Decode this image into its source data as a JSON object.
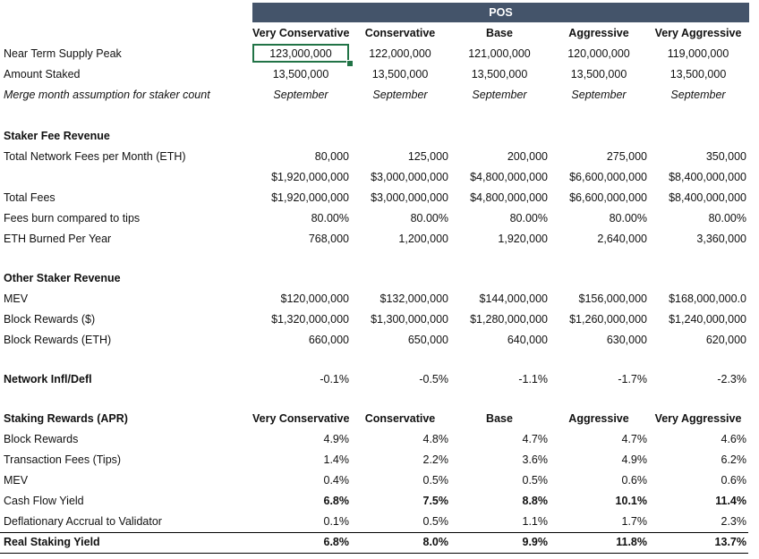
{
  "banner": "POS",
  "scenarios": [
    "Very Conservative",
    "Conservative",
    "Base",
    "Aggressive",
    "Very Aggressive"
  ],
  "inputs": {
    "supply_peak": {
      "label": "Near Term Supply Peak",
      "values": [
        "123,000,000",
        "122,000,000",
        "121,000,000",
        "120,000,000",
        "119,000,000"
      ]
    },
    "amount_staked": {
      "label": "Amount Staked",
      "values": [
        "13,500,000",
        "13,500,000",
        "13,500,000",
        "13,500,000",
        "13,500,000"
      ]
    },
    "merge_month": {
      "label": "Merge month assumption for staker count",
      "values": [
        "September",
        "September",
        "September",
        "September",
        "September"
      ]
    }
  },
  "staker_fee": {
    "title": "Staker Fee Revenue",
    "total_network_fees": {
      "label": "Total Network Fees per Month (ETH)",
      "values": [
        "80,000",
        "125,000",
        "200,000",
        "275,000",
        "350,000"
      ]
    },
    "fees_usd": {
      "label": "",
      "values": [
        "$1,920,000,000",
        "$3,000,000,000",
        "$4,800,000,000",
        "$6,600,000,000",
        "$8,400,000,000"
      ]
    },
    "total_fees": {
      "label": "Total Fees",
      "values": [
        "$1,920,000,000",
        "$3,000,000,000",
        "$4,800,000,000",
        "$6,600,000,000",
        "$8,400,000,000"
      ]
    },
    "burn_vs_tips": {
      "label": "Fees burn compared to tips",
      "values": [
        "80.00%",
        "80.00%",
        "80.00%",
        "80.00%",
        "80.00%"
      ]
    },
    "eth_burned": {
      "label": "ETH Burned Per Year",
      "values": [
        "768,000",
        "1,200,000",
        "1,920,000",
        "2,640,000",
        "3,360,000"
      ]
    }
  },
  "other_revenue": {
    "title": "Other Staker Revenue",
    "mev": {
      "label": "MEV",
      "values": [
        "$120,000,000",
        "$132,000,000",
        "$144,000,000",
        "$156,000,000",
        "$168,000,000.0"
      ]
    },
    "block_rewards_usd": {
      "label": "Block Rewards ($)",
      "values": [
        "$1,320,000,000",
        "$1,300,000,000",
        "$1,280,000,000",
        "$1,260,000,000",
        "$1,240,000,000"
      ]
    },
    "block_rewards_eth": {
      "label": "Block Rewards (ETH)",
      "values": [
        "660,000",
        "650,000",
        "640,000",
        "630,000",
        "620,000"
      ]
    }
  },
  "network_infl": {
    "label": "Network Infl/Defl",
    "values": [
      "-0.1%",
      "-0.5%",
      "-1.1%",
      "-1.7%",
      "-2.3%"
    ]
  },
  "apr": {
    "title": "Staking Rewards (APR)",
    "block_rewards": {
      "label": "Block Rewards",
      "values": [
        "4.9%",
        "4.8%",
        "4.7%",
        "4.7%",
        "4.6%"
      ]
    },
    "tx_fees": {
      "label": "Transaction Fees (Tips)",
      "values": [
        "1.4%",
        "2.2%",
        "3.6%",
        "4.9%",
        "6.2%"
      ]
    },
    "mev": {
      "label": "MEV",
      "values": [
        "0.4%",
        "0.5%",
        "0.5%",
        "0.6%",
        "0.6%"
      ]
    },
    "cash_flow": {
      "label": "Cash Flow Yield",
      "values": [
        "6.8%",
        "7.5%",
        "8.8%",
        "10.1%",
        "11.4%"
      ]
    },
    "deflationary": {
      "label": "Deflationary Accrual to Validator",
      "values": [
        "0.1%",
        "0.5%",
        "1.1%",
        "1.7%",
        "2.3%"
      ]
    },
    "real_yield": {
      "label": "Real Staking Yield",
      "values": [
        "6.8%",
        "8.0%",
        "9.9%",
        "11.8%",
        "13.7%"
      ]
    }
  }
}
